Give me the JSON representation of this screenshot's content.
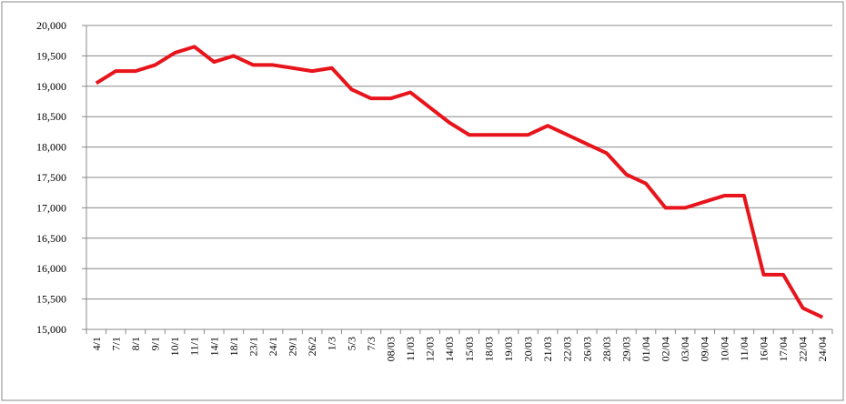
{
  "chart_data": {
    "type": "line",
    "categories": [
      "4/1",
      "7/1",
      "8/1",
      "9/1",
      "10/1",
      "11/1",
      "14/1",
      "18/1",
      "23/1",
      "24/1",
      "29/1",
      "26/2",
      "1/3",
      "5/3",
      "7/3",
      "08/03",
      "11/03",
      "12/03",
      "14/03",
      "15/03",
      "18/03",
      "19/03",
      "20/03",
      "21/03",
      "22/03",
      "26/03",
      "28/03",
      "29/03",
      "01/04",
      "02/04",
      "03/04",
      "09/04",
      "10/04",
      "11/04",
      "16/04",
      "17/04",
      "22/04",
      "24/04"
    ],
    "values": [
      19050,
      19250,
      19250,
      19350,
      19550,
      19650,
      19400,
      19500,
      19350,
      19350,
      19300,
      19250,
      19300,
      18950,
      18800,
      18800,
      18900,
      18650,
      18400,
      18200,
      18200,
      18200,
      18200,
      18350,
      18200,
      18050,
      17900,
      17550,
      17400,
      17000,
      17000,
      17100,
      17200,
      17200,
      15900,
      15900,
      15350,
      15200
    ],
    "color": "#e8141b",
    "ylim": [
      15000,
      20000
    ],
    "yticks": [
      {
        "value": 15000,
        "label": "15,000"
      },
      {
        "value": 15500,
        "label": "15,500"
      },
      {
        "value": 16000,
        "label": "16,000"
      },
      {
        "value": 16500,
        "label": "16,500"
      },
      {
        "value": 17000,
        "label": "17,000"
      },
      {
        "value": 17500,
        "label": "17,500"
      },
      {
        "value": 18000,
        "label": "18,000"
      },
      {
        "value": 18500,
        "label": "18,500"
      },
      {
        "value": 19000,
        "label": "19,000"
      },
      {
        "value": 19500,
        "label": "19,500"
      },
      {
        "value": 20000,
        "label": "20,000"
      }
    ],
    "grid": true
  }
}
